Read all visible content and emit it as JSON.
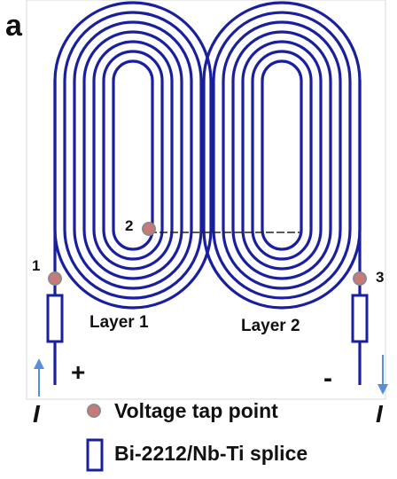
{
  "panel_label": "a",
  "points": [
    {
      "id": "tap-1",
      "label": "1"
    },
    {
      "id": "tap-2",
      "label": "2"
    },
    {
      "id": "tap-3",
      "label": "3"
    }
  ],
  "layers": [
    {
      "id": "layer-1",
      "label": "Layer 1"
    },
    {
      "id": "layer-2",
      "label": "Layer 2"
    }
  ],
  "terminals": {
    "plus": "+",
    "minus": "-"
  },
  "current_label": "I",
  "legend": {
    "tap_point": "Voltage tap point",
    "splice": "Bi-2212/Nb-Ti splice"
  },
  "colors": {
    "coil": "#1a1f9e",
    "tap_fill": "#c87a78",
    "tap_stroke": "#8a8a8a",
    "arrow": "#5b8ed8",
    "link": "#222222"
  }
}
